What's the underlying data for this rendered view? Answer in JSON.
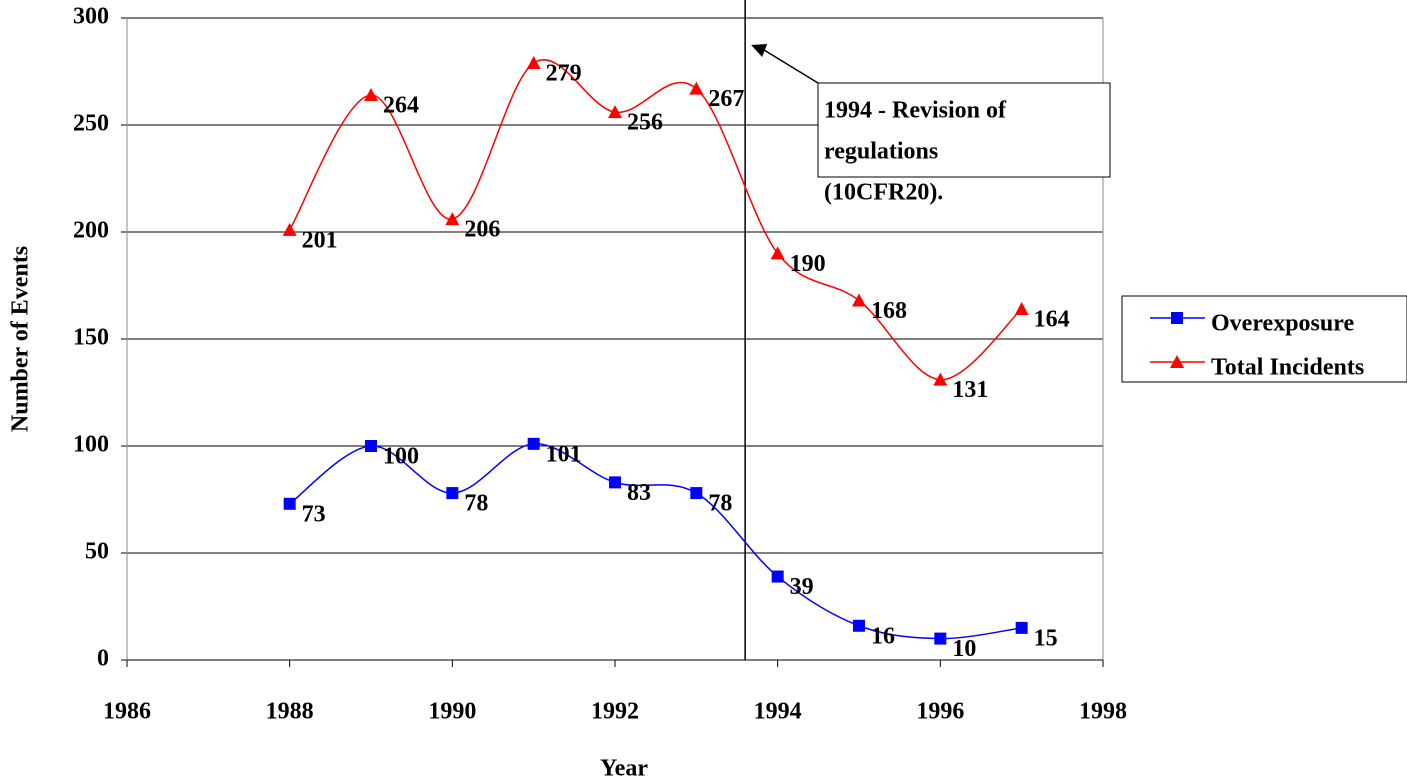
{
  "chart_data": {
    "type": "line",
    "x": [
      1988,
      1989,
      1990,
      1991,
      1992,
      1993,
      1994,
      1995,
      1996,
      1997
    ],
    "series": [
      {
        "name": "Overexposure",
        "color": "#0000ff",
        "marker": "square",
        "values": [
          73,
          100,
          78,
          101,
          83,
          78,
          39,
          16,
          10,
          15
        ]
      },
      {
        "name": "Total Incidents",
        "color": "#ff0000",
        "marker": "triangle",
        "values": [
          201,
          264,
          206,
          279,
          256,
          267,
          190,
          168,
          131,
          164
        ]
      }
    ],
    "xlabel": "Year",
    "ylabel": "Number of Events",
    "xlim": [
      1986,
      1998
    ],
    "xticks": [
      1986,
      1988,
      1990,
      1992,
      1994,
      1996,
      1998
    ],
    "ylim": [
      0,
      300
    ],
    "yticks": [
      0,
      50,
      100,
      150,
      200,
      250,
      300
    ],
    "grid": true,
    "smooth": true,
    "legend": "right",
    "annotation": {
      "text": [
        "1994 - Revision of",
        "regulations",
        "(10CFR20)."
      ],
      "x": 1993.6
    }
  }
}
